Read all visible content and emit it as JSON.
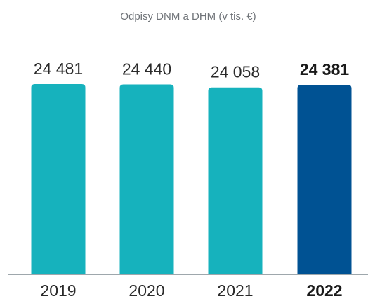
{
  "chart_data": {
    "type": "bar",
    "title": "Odpisy DNM a DHM (v tis. €)",
    "categories": [
      "2019",
      "2020",
      "2021",
      "2022"
    ],
    "values": [
      24481,
      24440,
      24058,
      24381
    ],
    "value_labels": [
      "24 481",
      "24 440",
      "24 058",
      "24 381"
    ],
    "highlighted": [
      false,
      false,
      false,
      true
    ],
    "xlabel": "",
    "ylabel": "",
    "grid": false,
    "legend": "none",
    "colors": {
      "bar": "#16b2bd",
      "bar_highlight": "#005293",
      "axis": "#7f8a90"
    }
  }
}
